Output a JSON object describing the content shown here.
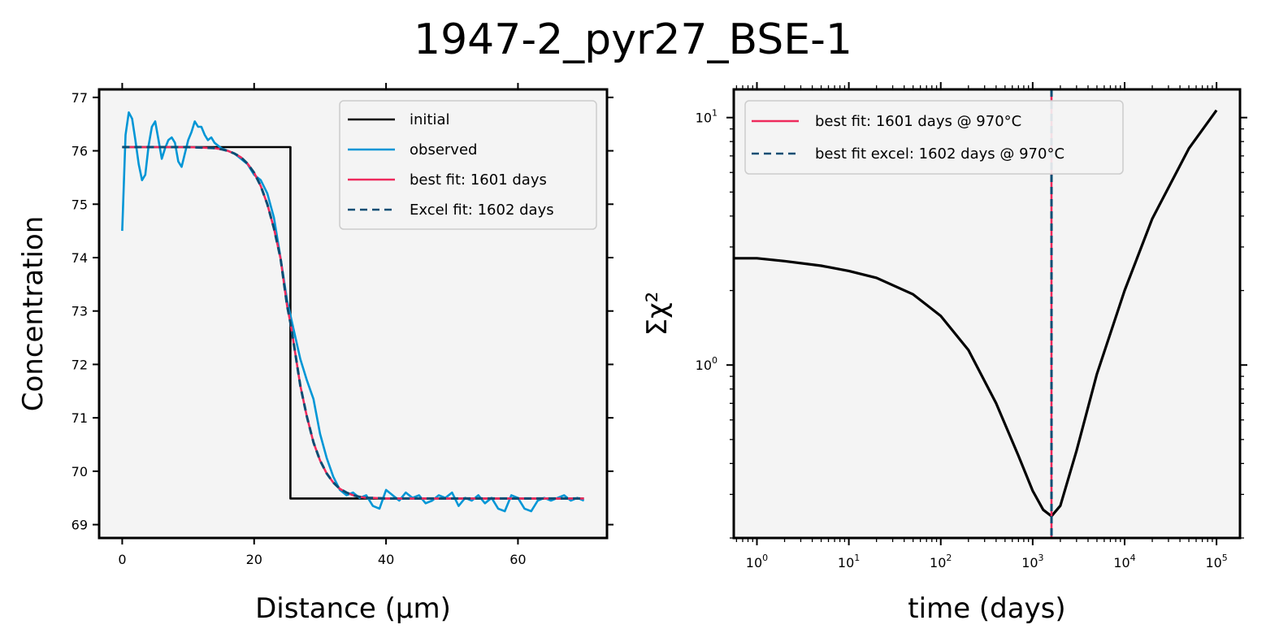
{
  "figure": {
    "title": "1947-2_pyr27_BSE-1"
  },
  "colors": {
    "initial": "#000000",
    "observed": "#0096d6",
    "best_fit": "#ee2a5c",
    "excel_fit": "#0b4d73",
    "chi2": "#000000",
    "axes_bg": "#f4f4f4"
  },
  "chart_data": [
    {
      "id": "profile",
      "type": "line",
      "xlabel": "Distance (μm)",
      "ylabel": "Concentration",
      "xlim": [
        -3.5,
        73.5
      ],
      "ylim": [
        68.75,
        77.15
      ],
      "xticks": [
        0,
        20,
        40,
        60
      ],
      "yticks": [
        69,
        70,
        71,
        72,
        73,
        74,
        75,
        76,
        77
      ],
      "legend_position": "upper right",
      "series": [
        {
          "name": "initial",
          "style": "solid",
          "x": [
            0,
            25.5,
            25.5,
            70
          ],
          "y": [
            76.07,
            76.07,
            69.49,
            69.49
          ]
        },
        {
          "name": "observed",
          "style": "solid",
          "x": [
            0,
            0.5,
            1,
            1.5,
            2,
            2.5,
            3,
            3.5,
            4,
            4.5,
            5,
            5.5,
            6,
            6.5,
            7,
            7.5,
            8,
            8.5,
            9,
            9.5,
            10,
            10.5,
            11,
            11.5,
            12,
            12.5,
            13,
            13.5,
            14,
            15,
            16,
            17,
            18,
            19,
            20,
            21,
            22,
            23,
            24,
            25,
            26,
            27,
            28,
            29,
            30,
            31,
            32,
            33,
            34,
            35,
            36,
            37,
            38,
            39,
            40,
            41,
            42,
            43,
            44,
            45,
            46,
            47,
            48,
            49,
            50,
            51,
            52,
            53,
            54,
            55,
            56,
            57,
            58,
            59,
            60,
            61,
            62,
            63,
            64,
            65,
            66,
            67,
            68,
            69,
            70
          ],
          "y": [
            74.5,
            76.3,
            76.72,
            76.6,
            76.2,
            75.75,
            75.45,
            75.55,
            76.1,
            76.45,
            76.55,
            76.2,
            75.85,
            76.05,
            76.2,
            76.25,
            76.15,
            75.8,
            75.7,
            75.95,
            76.2,
            76.35,
            76.55,
            76.45,
            76.45,
            76.3,
            76.2,
            76.25,
            76.15,
            76.05,
            76.0,
            75.95,
            75.85,
            75.75,
            75.55,
            75.45,
            75.2,
            74.75,
            74.0,
            73.2,
            72.65,
            72.1,
            71.7,
            71.35,
            70.7,
            70.25,
            69.9,
            69.65,
            69.55,
            69.6,
            69.5,
            69.55,
            69.35,
            69.3,
            69.65,
            69.55,
            69.45,
            69.6,
            69.5,
            69.55,
            69.4,
            69.45,
            69.55,
            69.5,
            69.6,
            69.35,
            69.5,
            69.45,
            69.55,
            69.4,
            69.5,
            69.3,
            69.25,
            69.55,
            69.5,
            69.3,
            69.25,
            69.45,
            69.5,
            69.45,
            69.5,
            69.55,
            69.45,
            69.5,
            69.45
          ]
        },
        {
          "name": "best fit: 1601 days",
          "style": "solid",
          "x": [
            0,
            2,
            4,
            6,
            8,
            10,
            12,
            14,
            15,
            16,
            17,
            18,
            19,
            20,
            21,
            22,
            23,
            24,
            25,
            25.5,
            26,
            27,
            28,
            29,
            30,
            31,
            32,
            33,
            34,
            35,
            36,
            37,
            38,
            40,
            42,
            45,
            50,
            55,
            60,
            65,
            70
          ],
          "y": [
            76.07,
            76.07,
            76.07,
            76.07,
            76.07,
            76.07,
            76.06,
            76.05,
            76.03,
            76.0,
            75.95,
            75.88,
            75.76,
            75.59,
            75.34,
            75.0,
            74.55,
            73.99,
            73.1,
            72.78,
            72.4,
            71.6,
            71.02,
            70.54,
            70.2,
            69.96,
            69.79,
            69.67,
            69.6,
            69.55,
            69.52,
            69.5,
            69.5,
            69.49,
            69.49,
            69.49,
            69.49,
            69.49,
            69.49,
            69.49,
            69.49
          ]
        },
        {
          "name": "Excel fit: 1602 days",
          "style": "dashed",
          "x": [
            0,
            2,
            4,
            6,
            8,
            10,
            12,
            14,
            15,
            16,
            17,
            18,
            19,
            20,
            21,
            22,
            23,
            24,
            25,
            25.5,
            26,
            27,
            28,
            29,
            30,
            31,
            32,
            33,
            34,
            35,
            36,
            37,
            38,
            40,
            42,
            45,
            50,
            55,
            60,
            65,
            70
          ],
          "y": [
            76.07,
            76.07,
            76.07,
            76.07,
            76.07,
            76.07,
            76.06,
            76.05,
            76.03,
            76.0,
            75.95,
            75.88,
            75.76,
            75.59,
            75.34,
            75.0,
            74.55,
            73.99,
            73.1,
            72.78,
            72.4,
            71.6,
            71.02,
            70.54,
            70.2,
            69.96,
            69.79,
            69.67,
            69.6,
            69.55,
            69.52,
            69.5,
            69.5,
            69.49,
            69.49,
            69.49,
            69.49,
            69.49,
            69.49,
            69.49,
            69.49
          ]
        }
      ]
    },
    {
      "id": "chi2",
      "type": "line",
      "xscale": "log",
      "yscale": "log",
      "xlabel": "time (days)",
      "ylabel": "Σχ²",
      "xlim": [
        0.56,
        180000
      ],
      "ylim": [
        0.2,
        13
      ],
      "xticks": [
        1,
        10,
        100,
        1000,
        10000,
        100000
      ],
      "xtick_labels": [
        {
          "base": "10",
          "exp": "0"
        },
        {
          "base": "10",
          "exp": "1"
        },
        {
          "base": "10",
          "exp": "2"
        },
        {
          "base": "10",
          "exp": "3"
        },
        {
          "base": "10",
          "exp": "4"
        },
        {
          "base": "10",
          "exp": "5"
        }
      ],
      "yticks": [
        1,
        10
      ],
      "ytick_labels": [
        {
          "base": "10",
          "exp": "0"
        },
        {
          "base": "10",
          "exp": "1"
        }
      ],
      "legend_position": "upper left",
      "series": [
        {
          "name": "",
          "style": "solid",
          "x": [
            0.56,
            1,
            2,
            5,
            10,
            20,
            50,
            100,
            200,
            400,
            700,
            1000,
            1300,
            1601,
            2000,
            3000,
            5000,
            10000,
            20000,
            50000,
            100000
          ],
          "y": [
            2.7,
            2.7,
            2.63,
            2.52,
            2.4,
            2.25,
            1.93,
            1.58,
            1.15,
            0.7,
            0.43,
            0.31,
            0.26,
            0.245,
            0.27,
            0.45,
            0.92,
            2.0,
            3.9,
            7.5,
            10.7
          ]
        }
      ],
      "vlines": [
        {
          "name": "best fit: 1601 days @ 970°C",
          "x": 1601,
          "style": "solid"
        },
        {
          "name": "best fit excel: 1602 days @ 970°C",
          "x": 1602,
          "style": "dashed"
        }
      ]
    }
  ]
}
